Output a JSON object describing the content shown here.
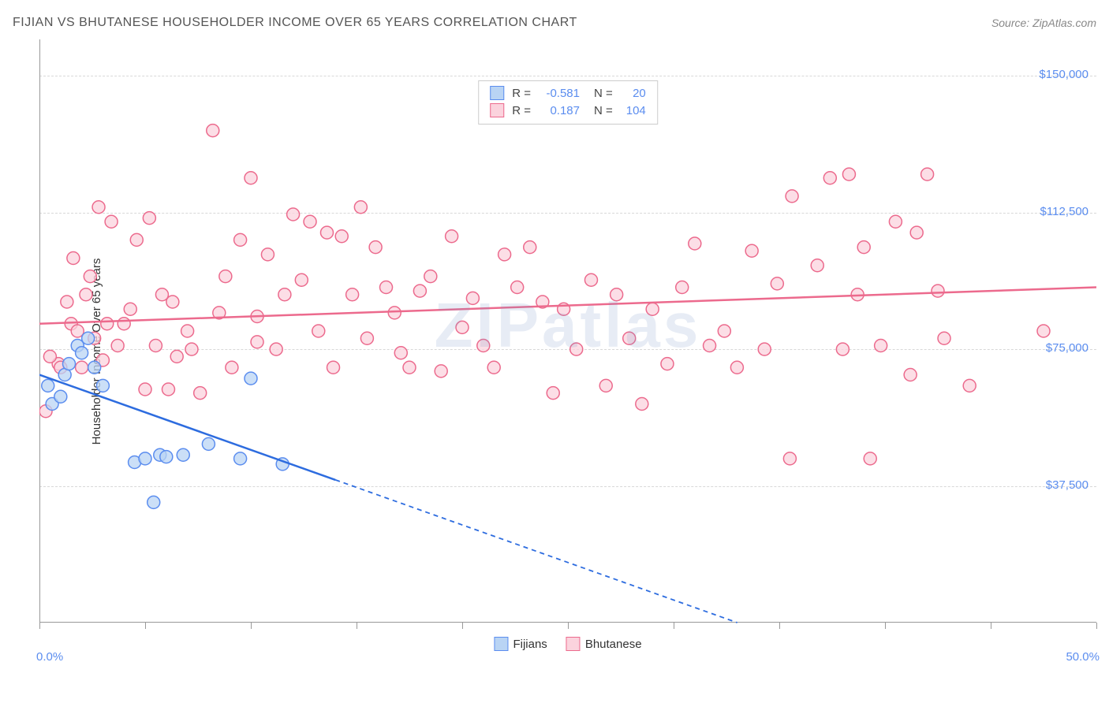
{
  "header": {
    "title": "FIJIAN VS BHUTANESE HOUSEHOLDER INCOME OVER 65 YEARS CORRELATION CHART",
    "source": "Source: ZipAtlas.com"
  },
  "watermark": "ZIPatlas",
  "chart": {
    "type": "scatter",
    "background_color": "#ffffff",
    "grid_color": "#d8d8d8",
    "axis_color": "#999999",
    "y_axis_label": "Householder Income Over 65 years",
    "xlim": [
      0,
      50
    ],
    "ylim": [
      0,
      160000
    ],
    "x_ticks": [
      0,
      5,
      10,
      15,
      20,
      25,
      30,
      35,
      40,
      45,
      50
    ],
    "x_tick_labels": {
      "0": "0.0%",
      "50": "50.0%"
    },
    "y_ticks": [
      37500,
      75000,
      112500,
      150000
    ],
    "y_tick_labels": {
      "37500": "$37,500",
      "75000": "$75,000",
      "112500": "$112,500",
      "150000": "$150,000"
    },
    "label_color": "#5b8def",
    "label_fontsize": 15,
    "marker_radius": 8,
    "marker_stroke_width": 1.5,
    "line_width": 2.5,
    "dash_pattern": "6,5",
    "series": {
      "fijians": {
        "label": "Fijians",
        "fill_color": "#b9d4f4",
        "stroke_color": "#5b8def",
        "line_color": "#2d6cdf",
        "R": "-0.581",
        "N": "20",
        "points": [
          [
            0.4,
            65000
          ],
          [
            0.6,
            60000
          ],
          [
            1.2,
            68000
          ],
          [
            1.4,
            71000
          ],
          [
            1.8,
            76000
          ],
          [
            2.0,
            74000
          ],
          [
            2.3,
            78000
          ],
          [
            2.6,
            70000
          ],
          [
            1.0,
            62000
          ],
          [
            3.0,
            65000
          ],
          [
            4.5,
            44000
          ],
          [
            5.0,
            45000
          ],
          [
            5.7,
            46000
          ],
          [
            6.0,
            45500
          ],
          [
            6.8,
            46000
          ],
          [
            5.4,
            33000
          ],
          [
            8.0,
            49000
          ],
          [
            9.5,
            45000
          ],
          [
            10.0,
            67000
          ],
          [
            11.5,
            43500
          ]
        ],
        "trend": {
          "x1": 0,
          "y1": 68000,
          "x2": 50,
          "y2": -35000,
          "solid_until_x": 14
        }
      },
      "bhutanese": {
        "label": "Bhutanese",
        "fill_color": "#fbd3dd",
        "stroke_color": "#ec6a8d",
        "line_color": "#ec6a8d",
        "R": "0.187",
        "N": "104",
        "points": [
          [
            0.3,
            58000
          ],
          [
            0.9,
            71000
          ],
          [
            1.0,
            70000
          ],
          [
            1.3,
            88000
          ],
          [
            1.5,
            82000
          ],
          [
            1.6,
            100000
          ],
          [
            1.8,
            80000
          ],
          [
            2.0,
            70000
          ],
          [
            2.2,
            90000
          ],
          [
            2.4,
            95000
          ],
          [
            2.6,
            78000
          ],
          [
            2.8,
            114000
          ],
          [
            3.0,
            72000
          ],
          [
            3.2,
            82000
          ],
          [
            3.4,
            110000
          ],
          [
            3.7,
            76000
          ],
          [
            4.0,
            82000
          ],
          [
            4.3,
            86000
          ],
          [
            4.6,
            105000
          ],
          [
            5.0,
            64000
          ],
          [
            5.2,
            111000
          ],
          [
            5.5,
            76000
          ],
          [
            5.8,
            90000
          ],
          [
            6.1,
            64000
          ],
          [
            6.3,
            88000
          ],
          [
            6.5,
            73000
          ],
          [
            7.0,
            80000
          ],
          [
            7.2,
            75000
          ],
          [
            7.6,
            63000
          ],
          [
            8.2,
            135000
          ],
          [
            8.5,
            85000
          ],
          [
            8.8,
            95000
          ],
          [
            9.1,
            70000
          ],
          [
            9.5,
            105000
          ],
          [
            10.0,
            122000
          ],
          [
            10.3,
            84000
          ],
          [
            10.3,
            77000
          ],
          [
            10.8,
            101000
          ],
          [
            11.2,
            75000
          ],
          [
            11.6,
            90000
          ],
          [
            12.0,
            112000
          ],
          [
            12.4,
            94000
          ],
          [
            12.8,
            110000
          ],
          [
            13.2,
            80000
          ],
          [
            13.6,
            107000
          ],
          [
            13.9,
            70000
          ],
          [
            14.3,
            106000
          ],
          [
            14.8,
            90000
          ],
          [
            15.2,
            114000
          ],
          [
            15.5,
            78000
          ],
          [
            15.9,
            103000
          ],
          [
            16.4,
            92000
          ],
          [
            16.8,
            85000
          ],
          [
            17.1,
            74000
          ],
          [
            17.5,
            70000
          ],
          [
            18.0,
            91000
          ],
          [
            18.5,
            95000
          ],
          [
            19.0,
            69000
          ],
          [
            19.5,
            106000
          ],
          [
            20.0,
            81000
          ],
          [
            20.5,
            89000
          ],
          [
            21.0,
            76000
          ],
          [
            21.5,
            70000
          ],
          [
            22.0,
            101000
          ],
          [
            22.6,
            92000
          ],
          [
            23.2,
            103000
          ],
          [
            23.8,
            88000
          ],
          [
            24.3,
            63000
          ],
          [
            24.8,
            86000
          ],
          [
            25.4,
            75000
          ],
          [
            26.1,
            94000
          ],
          [
            26.8,
            65000
          ],
          [
            27.3,
            90000
          ],
          [
            27.9,
            78000
          ],
          [
            28.5,
            60000
          ],
          [
            29.0,
            86000
          ],
          [
            29.7,
            71000
          ],
          [
            30.4,
            92000
          ],
          [
            31.0,
            104000
          ],
          [
            31.7,
            76000
          ],
          [
            32.4,
            80000
          ],
          [
            33.0,
            70000
          ],
          [
            33.7,
            102000
          ],
          [
            34.3,
            75000
          ],
          [
            34.9,
            93000
          ],
          [
            35.5,
            45000
          ],
          [
            35.6,
            117000
          ],
          [
            36.8,
            98000
          ],
          [
            37.4,
            122000
          ],
          [
            38.0,
            75000
          ],
          [
            38.3,
            123000
          ],
          [
            38.7,
            90000
          ],
          [
            39.0,
            103000
          ],
          [
            39.3,
            45000
          ],
          [
            39.8,
            76000
          ],
          [
            40.5,
            110000
          ],
          [
            41.2,
            68000
          ],
          [
            41.5,
            107000
          ],
          [
            42.0,
            123000
          ],
          [
            42.5,
            91000
          ],
          [
            42.8,
            78000
          ],
          [
            44.0,
            65000
          ],
          [
            47.5,
            80000
          ],
          [
            0.5,
            73000
          ]
        ],
        "trend": {
          "x1": 0,
          "y1": 82000,
          "x2": 50,
          "y2": 92000,
          "solid_until_x": 50
        }
      }
    },
    "legend_bottom": [
      {
        "key": "fijians",
        "label": "Fijians"
      },
      {
        "key": "bhutanese",
        "label": "Bhutanese"
      }
    ]
  }
}
